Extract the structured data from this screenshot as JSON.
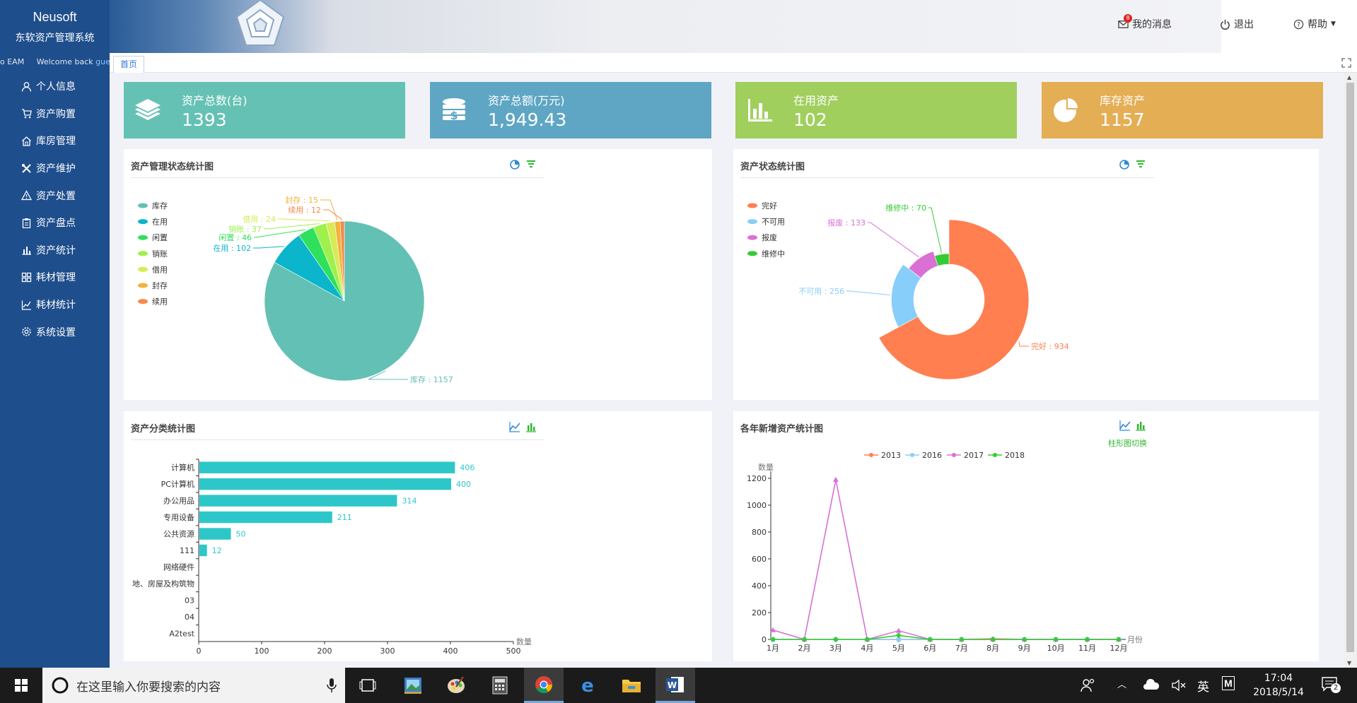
{
  "sidebar": {
    "brand_name": "Neusoft",
    "system_title": "东软资产管理系统",
    "welcome_prefix": "o EAM",
    "welcome_text": "Welcome back",
    "welcome_user": "gue",
    "items": [
      {
        "label": "个人信息",
        "icon": "user-icon"
      },
      {
        "label": "资产购置",
        "icon": "cart-icon"
      },
      {
        "label": "库房管理",
        "icon": "home-icon"
      },
      {
        "label": "资产维护",
        "icon": "tools-icon"
      },
      {
        "label": "资产处置",
        "icon": "warning-icon"
      },
      {
        "label": "资产盘点",
        "icon": "clipboard-icon"
      },
      {
        "label": "资产统计",
        "icon": "bar-chart-icon"
      },
      {
        "label": "耗材管理",
        "icon": "grid-icon"
      },
      {
        "label": "耗材统计",
        "icon": "line-chart-icon"
      },
      {
        "label": "系统设置",
        "icon": "gear-icon"
      }
    ]
  },
  "header": {
    "messages_label": "我的消息",
    "messages_count": "8",
    "logout_label": "退出",
    "help_label": "帮助"
  },
  "tabs": {
    "home": "首页"
  },
  "stats": [
    {
      "label": "资产总数(台)",
      "value": "1393",
      "color": "#65c1b4",
      "icon": "layers-icon"
    },
    {
      "label": "资产总额(万元)",
      "value": "1,949.43",
      "color": "#5ea6c4",
      "icon": "money-stack-icon"
    },
    {
      "label": "在用资产",
      "value": "102",
      "color": "#a0cf5e",
      "icon": "bar-chart-icon"
    },
    {
      "label": "库存资产",
      "value": "1157",
      "color": "#e4ae55",
      "icon": "pie-chart-icon"
    }
  ],
  "panels": {
    "pie1_title": "资产管理状态统计图",
    "pie2_title": "资产状态统计图",
    "bar_title": "资产分类统计图",
    "line_title": "各年新增资产统计图",
    "line_switch_label": "柱形图切换"
  },
  "chart_data": [
    {
      "type": "pie",
      "title": "资产管理状态统计图",
      "legend_position": "left",
      "categories": [
        "库存",
        "在用",
        "闲置",
        "销账",
        "借用",
        "封存",
        "续用"
      ],
      "values": [
        1157,
        102,
        46,
        37,
        24,
        15,
        12
      ],
      "colors": [
        "#63c0b4",
        "#0bb5cb",
        "#2ee05b",
        "#9ef04c",
        "#d8ea55",
        "#f2b23e",
        "#f58a4b"
      ],
      "data_labels": [
        "库存 : 1157",
        "在用 : 102",
        "闲置 : 46",
        "销账 : 37",
        "借用 : 24",
        "封存 : 15",
        "续用 : 12"
      ]
    },
    {
      "type": "pie",
      "title": "资产状态统计图",
      "legend_position": "left",
      "categories": [
        "完好",
        "不可用",
        "报废",
        "维修中"
      ],
      "values": [
        934,
        256,
        133,
        70
      ],
      "colors": [
        "#ff7f50",
        "#87cefa",
        "#da70d6",
        "#32cd32"
      ],
      "data_labels": [
        "完好 : 934",
        "不可用 : 256",
        "报废 : 133",
        "维修中 : 70"
      ]
    },
    {
      "type": "bar",
      "orientation": "horizontal",
      "title": "资产分类统计图",
      "categories": [
        "计算机",
        "PC计算机",
        "办公用品",
        "专用设备",
        "公共资源",
        "111",
        "网络硬件",
        "地、房屋及构筑物",
        "03",
        "04",
        "A2test"
      ],
      "values": [
        406,
        400,
        314,
        211,
        50,
        12,
        0,
        0,
        0,
        0,
        0
      ],
      "xlabel": "数量",
      "xlim": [
        0,
        500
      ],
      "xticks": [
        "0",
        "100",
        "200",
        "300",
        "400",
        "500"
      ],
      "color": "#2ec7c9"
    },
    {
      "type": "line",
      "title": "各年新增资产统计图",
      "ylabel": "数量",
      "xlabel": "月份",
      "ylim": [
        0,
        1200
      ],
      "yticks": [
        "0",
        "200",
        "400",
        "600",
        "800",
        "1000",
        "1200"
      ],
      "x": [
        "1月",
        "2月",
        "3月",
        "4月",
        "5月",
        "6月",
        "7月",
        "8月",
        "9月",
        "10月",
        "11月",
        "12月"
      ],
      "legend_position": "top",
      "series": [
        {
          "name": "2013",
          "color": "#ff7f50",
          "marker": "circle",
          "values": [
            0,
            0,
            0,
            0,
            0,
            0,
            0,
            5,
            0,
            0,
            0,
            0
          ]
        },
        {
          "name": "2016",
          "color": "#87cefa",
          "marker": "square",
          "values": [
            0,
            0,
            0,
            0,
            0,
            0,
            0,
            0,
            0,
            0,
            0,
            0
          ]
        },
        {
          "name": "2017",
          "color": "#da70d6",
          "marker": "triangle",
          "values": [
            70,
            0,
            1190,
            0,
            65,
            0,
            0,
            0,
            0,
            0,
            0,
            0
          ]
        },
        {
          "name": "2018",
          "color": "#32cd32",
          "marker": "diamond",
          "values": [
            0,
            0,
            0,
            0,
            30,
            0,
            0,
            0,
            0,
            0,
            0,
            0
          ]
        }
      ]
    }
  ],
  "taskbar": {
    "search_placeholder": "在这里输入你要搜索的内容",
    "ime_label": "英",
    "time": "17:04",
    "date": "2018/5/14",
    "notification_count": "2"
  }
}
